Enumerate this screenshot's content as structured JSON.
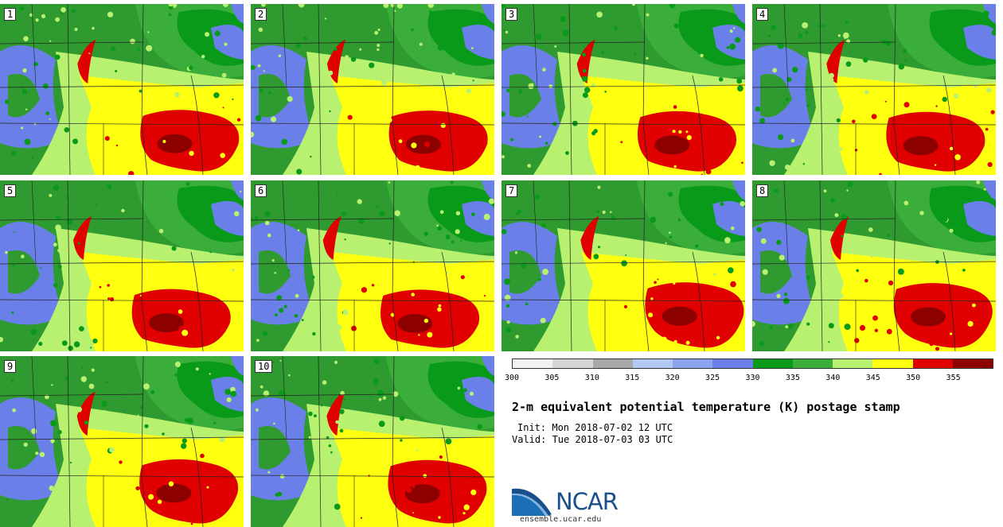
{
  "panels": [
    "1",
    "2",
    "3",
    "4",
    "5",
    "6",
    "7",
    "8",
    "9",
    "10"
  ],
  "colorbar": {
    "colors": [
      "#f2f2f2",
      "#d6d6d6",
      "#a8a8a8",
      "#b4c8f5",
      "#8aa5ee",
      "#6a80e8",
      "#0a9a1a",
      "#3aad3a",
      "#b8f070",
      "#ffff10",
      "#e00000",
      "#8c0000"
    ],
    "ticks": [
      "300",
      "305",
      "310",
      "315",
      "320",
      "325",
      "330",
      "335",
      "340",
      "345",
      "350",
      "355"
    ]
  },
  "title": "2-m equivalent potential temperature (K) postage stamp",
  "init": "Init: Mon 2018-07-02 12 UTC",
  "valid": "Valid: Tue 2018-07-03 03 UTC",
  "logo_text": "NCAR",
  "url": "ensemble.ucar.edu"
}
